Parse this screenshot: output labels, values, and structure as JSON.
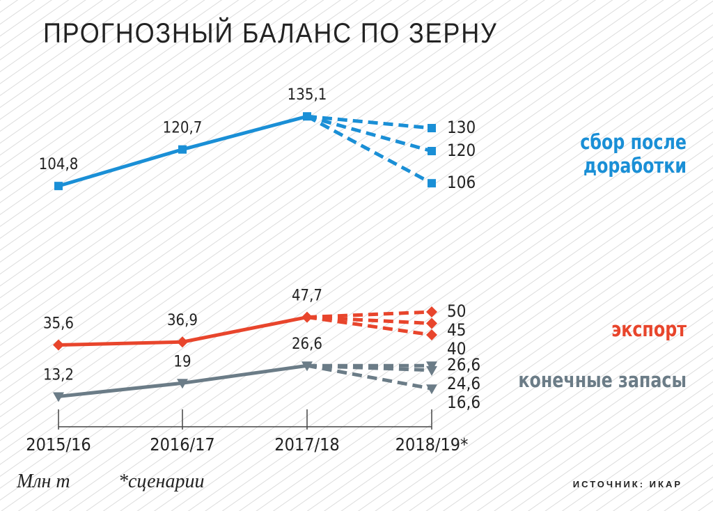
{
  "chart_data": {
    "type": "line",
    "title": "ПРОГНОЗНЫЙ БАЛАНС ПО ЗЕРНУ",
    "categories": [
      "2015/16",
      "2016/17",
      "2017/18",
      "2018/19*"
    ],
    "ylim": [
      0,
      140
    ],
    "groups": [
      {
        "name": "сбор после доработки",
        "color": "#1a8fd6",
        "marker": "square",
        "values": [
          104.8,
          120.7,
          135.1
        ],
        "value_labels": [
          "104,8",
          "120,7",
          "135,1"
        ],
        "scenarios": [
          130,
          120,
          106
        ],
        "scenario_labels": [
          "130",
          "120",
          "106"
        ]
      },
      {
        "name": "экспорт",
        "color": "#e8452c",
        "marker": "diamond",
        "values": [
          35.6,
          36.9,
          47.7
        ],
        "value_labels": [
          "35,6",
          "36,9",
          "47,7"
        ],
        "scenarios": [
          50,
          45,
          40
        ],
        "scenario_labels": [
          "50",
          "45",
          "40"
        ]
      },
      {
        "name": "конечные запасы",
        "color": "#6b7c87",
        "marker": "triangle-down",
        "values": [
          13.2,
          19,
          26.6
        ],
        "value_labels": [
          "13,2",
          "19",
          "26,6"
        ],
        "scenarios": [
          26.6,
          24.6,
          16.6
        ],
        "scenario_labels": [
          "26,6",
          "24,6",
          "16,6"
        ]
      }
    ],
    "unit_note": "Млн т",
    "scenario_note": "*сценарии",
    "source": "ИСТОЧНИК: ИКАР"
  }
}
